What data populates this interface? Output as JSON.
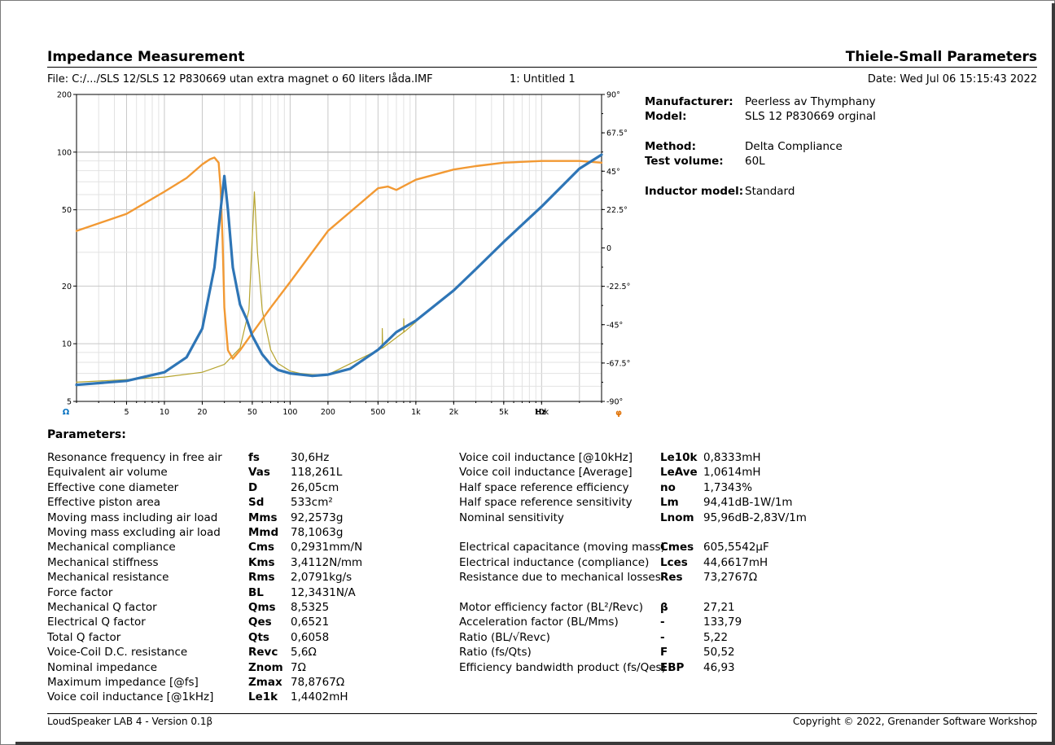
{
  "header": {
    "left_title": "Impedance Measurement",
    "right_title": "Thiele-Small Parameters",
    "file": "File: C:/.../SLS 12/SLS 12 P830669 utan extra magnet o 60 liters låda.IMF",
    "untitled": "1: Untitled 1",
    "date": "Date: Wed Jul 06 15:15:43 2022"
  },
  "chart_data": {
    "type": "line",
    "xlabel": "Hz",
    "x_scale": "log",
    "xlim": [
      2,
      30000
    ],
    "x_ticks": [
      {
        "value": 5,
        "label": "5"
      },
      {
        "value": 10,
        "label": "10"
      },
      {
        "value": 20,
        "label": "20"
      },
      {
        "value": 50,
        "label": "50"
      },
      {
        "value": 100,
        "label": "100"
      },
      {
        "value": 200,
        "label": "200"
      },
      {
        "value": 500,
        "label": "500"
      },
      {
        "value": 1000,
        "label": "1k"
      },
      {
        "value": 2000,
        "label": "2k"
      },
      {
        "value": 5000,
        "label": "5k"
      },
      {
        "value": 10000,
        "label": "10k"
      }
    ],
    "y_left_label": "Ω",
    "y_left_scale": "log",
    "y_left_lim": [
      5,
      200
    ],
    "y_left_ticks": [
      5,
      10,
      20,
      50,
      100,
      200
    ],
    "y_right_label": "φ",
    "y_right_lim": [
      -90,
      90
    ],
    "y_right_ticks": [
      "90°",
      "67.5°",
      "45°",
      "22.5°",
      "0",
      "-22.5°",
      "-45°",
      "-67.5°",
      "-90°"
    ],
    "y_right_values": [
      90,
      67.5,
      45,
      22.5,
      0,
      -22.5,
      -45,
      -67.5,
      -90
    ],
    "grid": true,
    "series": [
      {
        "color": "#2e75b6",
        "axis": "left",
        "x": [
          2,
          5,
          10,
          15,
          20,
          25,
          28,
          30,
          32,
          35,
          40,
          45,
          50,
          60,
          70,
          80,
          100,
          150,
          200,
          300,
          500,
          700,
          1000,
          2000,
          3000,
          5000,
          10000,
          20000,
          30000
        ],
        "y": [
          6.1,
          6.4,
          7.1,
          8.5,
          12,
          25,
          50,
          75,
          50,
          25,
          16,
          13.5,
          11,
          8.8,
          7.8,
          7.3,
          7.0,
          6.8,
          6.9,
          7.4,
          9.3,
          11.5,
          13.2,
          19,
          24.5,
          34,
          52,
          82,
          97
        ]
      },
      {
        "color": "#f29933",
        "axis": "right",
        "x": [
          2,
          5,
          10,
          15,
          20,
          23,
          25,
          27,
          28,
          29,
          30,
          32,
          35,
          40,
          50,
          70,
          100,
          200,
          500,
          600,
          700,
          1000,
          2000,
          3000,
          5000,
          10000,
          20000,
          30000
        ],
        "y": [
          10,
          20,
          33,
          41,
          49,
          52,
          53,
          50,
          35,
          5,
          -35,
          -60,
          -65,
          -60,
          -50,
          -35,
          -20,
          10,
          35,
          36,
          34,
          40,
          46,
          48,
          50,
          51,
          51,
          50
        ]
      },
      {
        "color": "#b5a32e",
        "axis": "left",
        "x": [
          2,
          5,
          10,
          20,
          30,
          40,
          47,
          52,
          55,
          60,
          70,
          80,
          100,
          120,
          150,
          200,
          540,
          541,
          545,
          800,
          801,
          805,
          1000
        ],
        "y": [
          6.3,
          6.5,
          6.7,
          7.1,
          7.8,
          9.5,
          15,
          62,
          30,
          15,
          9.3,
          7.9,
          7.2,
          7.0,
          6.9,
          6.9,
          9.5,
          12,
          9.5,
          11.5,
          13.5,
          11.5,
          13
        ]
      }
    ]
  },
  "ts_info": {
    "manufacturer_label": "Manufacturer:",
    "manufacturer_value": "Peerless av Thymphany",
    "model_label": "Model:",
    "model_value": " SLS 12 P830669 orginal",
    "method_label": "Method:",
    "method_value": "Delta Compliance",
    "volume_label": "Test volume:",
    "volume_value": "60L",
    "inductor_label": "Inductor model:",
    "inductor_value": "Standard"
  },
  "parameters_title": "Parameters:",
  "params_left": [
    {
      "name": "Resonance frequency in free air",
      "sym": "fs",
      "val": "30,6Hz"
    },
    {
      "name": "Equivalent air volume",
      "sym": "Vas",
      "val": "118,261L"
    },
    {
      "name": "Effective cone diameter",
      "sym": "D",
      "val": "26,05cm"
    },
    {
      "name": "Effective piston area",
      "sym": "Sd",
      "val": "533cm²"
    },
    {
      "name": "Moving mass including air load",
      "sym": "Mms",
      "val": "92,2573g"
    },
    {
      "name": "Moving mass excluding air load",
      "sym": "Mmd",
      "val": "78,1063g"
    },
    {
      "name": "Mechanical compliance",
      "sym": "Cms",
      "val": "0,2931mm/N"
    },
    {
      "name": "Mechanical stiffness",
      "sym": "Kms",
      "val": "3,4112N/mm"
    },
    {
      "name": "Mechanical resistance",
      "sym": "Rms",
      "val": "2,0791kg/s"
    },
    {
      "name": "Force factor",
      "sym": "BL",
      "val": "12,3431N/A"
    },
    {
      "name": "Mechanical Q factor",
      "sym": "Qms",
      "val": "8,5325"
    },
    {
      "name": "Electrical Q factor",
      "sym": "Qes",
      "val": "0,6521"
    },
    {
      "name": "Total Q factor",
      "sym": "Qts",
      "val": "0,6058"
    },
    {
      "name": "Voice-Coil D.C. resistance",
      "sym": "Revc",
      "val": "5,6Ω"
    },
    {
      "name": "Nominal impedance",
      "sym": "Znom",
      "val": "7Ω"
    },
    {
      "name": "Maximum impedance [@fs]",
      "sym": "Zmax",
      "val": "78,8767Ω"
    },
    {
      "name": "Voice coil inductance [@1kHz]",
      "sym": "Le1k",
      "val": "1,4402mH"
    }
  ],
  "params_right": [
    {
      "name": "Voice coil inductance [@10kHz]",
      "sym": "Le10k",
      "val": "0,8333mH",
      "row": 0
    },
    {
      "name": "Voice coil inductance [Average]",
      "sym": "LeAve",
      "val": "1,0614mH",
      "row": 1
    },
    {
      "name": "Half space reference efficiency",
      "sym": "no",
      "val": "1,7343%",
      "row": 2
    },
    {
      "name": "Half space reference sensitivity",
      "sym": "Lm",
      "val": "94,41dB-1W/1m",
      "row": 3
    },
    {
      "name": "Nominal sensitivity",
      "sym": "Lnom",
      "val": "95,96dB-2,83V/1m",
      "row": 4
    },
    {
      "name": "Electrical capacitance (moving mass)",
      "sym": "Cmes",
      "val": "605,5542µF",
      "row": 6
    },
    {
      "name": "Electrical inductance (compliance)",
      "sym": "Lces",
      "val": "44,6617mH",
      "row": 7
    },
    {
      "name": "Resistance due to mechanical losses",
      "sym": "Res",
      "val": "73,2767Ω",
      "row": 8
    },
    {
      "name": "Motor efficiency factor (BL²/Revc)",
      "sym": "β",
      "val": "27,21",
      "row": 10
    },
    {
      "name": "Acceleration factor (BL/Mms)",
      "sym": "-",
      "val": "133,79",
      "row": 11
    },
    {
      "name": "Ratio (BL/√Revc)",
      "sym": "-",
      "val": "5,22",
      "row": 12
    },
    {
      "name": "Ratio (fs/Qts)",
      "sym": "F",
      "val": "50,52",
      "row": 13
    },
    {
      "name": "Efficiency bandwidth product (fs/Qes)",
      "sym": "EBP",
      "val": "46,93",
      "row": 14
    }
  ],
  "footer": {
    "left": "LoudSpeaker LAB 4 - Version 0.1β",
    "right": "Copyright © 2022, Grenander Software Workshop"
  }
}
